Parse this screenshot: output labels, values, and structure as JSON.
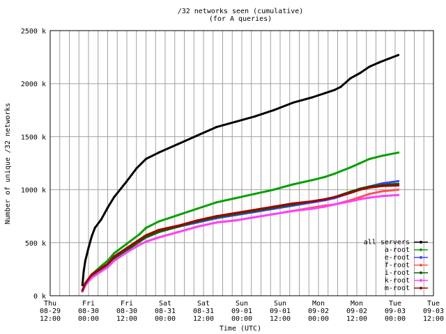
{
  "chart_data": {
    "type": "line",
    "title": "/32 networks seen (cumulative)",
    "subtitle": "(for A queries)",
    "xlabel": "Time (UTC)",
    "ylabel": "Number of unique /32 networks",
    "xlim": [
      "2002-08-29T12:00",
      "2002-09-03T12:00"
    ],
    "ylim": [
      0,
      2500000
    ],
    "grid": true,
    "legend_position": "lower-right",
    "x_ticks": [
      {
        "t": 0,
        "l1": "Thu",
        "l2": "08-29",
        "l3": "12:00"
      },
      {
        "t": 12,
        "l1": "Fri",
        "l2": "08-30",
        "l3": "00:00"
      },
      {
        "t": 24,
        "l1": "Fri",
        "l2": "08-30",
        "l3": "12:00"
      },
      {
        "t": 36,
        "l1": "Sat",
        "l2": "08-31",
        "l3": "00:00"
      },
      {
        "t": 48,
        "l1": "Sat",
        "l2": "08-31",
        "l3": "12:00"
      },
      {
        "t": 60,
        "l1": "Sun",
        "l2": "09-01",
        "l3": "00:00"
      },
      {
        "t": 72,
        "l1": "Sun",
        "l2": "09-01",
        "l3": "12:00"
      },
      {
        "t": 84,
        "l1": "Mon",
        "l2": "09-02",
        "l3": "00:00"
      },
      {
        "t": 96,
        "l1": "Mon",
        "l2": "09-02",
        "l3": "12:00"
      },
      {
        "t": 108,
        "l1": "Tue",
        "l2": "09-03",
        "l3": "00:00"
      },
      {
        "t": 120,
        "l1": "Tue",
        "l2": "09-03",
        "l3": "12:00"
      }
    ],
    "y_ticks": [
      {
        "v": 0,
        "label": "0 k"
      },
      {
        "v": 500000,
        "label": "500 k"
      },
      {
        "v": 1000000,
        "label": "1000 k"
      },
      {
        "v": 1500000,
        "label": "1500 k"
      },
      {
        "v": 2000000,
        "label": "2000 k"
      },
      {
        "v": 2500000,
        "label": "2500 k"
      }
    ],
    "series": [
      {
        "name": "all servers",
        "color": "#000000",
        "points": [
          [
            10.1,
            100000
          ],
          [
            10.5,
            230000
          ],
          [
            11,
            330000
          ],
          [
            12,
            450000
          ],
          [
            13,
            560000
          ],
          [
            14,
            640000
          ],
          [
            16,
            720000
          ],
          [
            18,
            830000
          ],
          [
            20,
            930000
          ],
          [
            24,
            1080000
          ],
          [
            27,
            1200000
          ],
          [
            30,
            1290000
          ],
          [
            34,
            1350000
          ],
          [
            40,
            1430000
          ],
          [
            46,
            1510000
          ],
          [
            52,
            1590000
          ],
          [
            58,
            1640000
          ],
          [
            64,
            1690000
          ],
          [
            70,
            1750000
          ],
          [
            76,
            1820000
          ],
          [
            82,
            1870000
          ],
          [
            86,
            1910000
          ],
          [
            89,
            1940000
          ],
          [
            91,
            1970000
          ],
          [
            94,
            2050000
          ],
          [
            97,
            2100000
          ],
          [
            100,
            2160000
          ],
          [
            103,
            2200000
          ],
          [
            106,
            2235000
          ],
          [
            109,
            2270000
          ]
        ]
      },
      {
        "name": "a-root",
        "color": "#00a000",
        "points": [
          [
            10.1,
            50000
          ],
          [
            11,
            120000
          ],
          [
            13,
            200000
          ],
          [
            16,
            280000
          ],
          [
            18,
            330000
          ],
          [
            20,
            400000
          ],
          [
            24,
            490000
          ],
          [
            28,
            580000
          ],
          [
            30,
            640000
          ],
          [
            34,
            700000
          ],
          [
            40,
            760000
          ],
          [
            46,
            820000
          ],
          [
            52,
            880000
          ],
          [
            58,
            920000
          ],
          [
            64,
            960000
          ],
          [
            70,
            1000000
          ],
          [
            76,
            1050000
          ],
          [
            82,
            1090000
          ],
          [
            86,
            1120000
          ],
          [
            89,
            1150000
          ],
          [
            94,
            1210000
          ],
          [
            97,
            1250000
          ],
          [
            100,
            1290000
          ],
          [
            104,
            1320000
          ],
          [
            109,
            1350000
          ]
        ]
      },
      {
        "name": "e-root",
        "color": "#4040ff",
        "points": [
          [
            10.1,
            50000
          ],
          [
            11,
            110000
          ],
          [
            13,
            190000
          ],
          [
            16,
            260000
          ],
          [
            18,
            300000
          ],
          [
            20,
            360000
          ],
          [
            24,
            440000
          ],
          [
            28,
            520000
          ],
          [
            30,
            560000
          ],
          [
            34,
            610000
          ],
          [
            40,
            650000
          ],
          [
            46,
            690000
          ],
          [
            52,
            730000
          ],
          [
            58,
            760000
          ],
          [
            64,
            790000
          ],
          [
            70,
            820000
          ],
          [
            76,
            850000
          ],
          [
            82,
            880000
          ],
          [
            86,
            900000
          ],
          [
            89,
            920000
          ],
          [
            94,
            970000
          ],
          [
            97,
            1000000
          ],
          [
            100,
            1030000
          ],
          [
            104,
            1060000
          ],
          [
            109,
            1080000
          ]
        ]
      },
      {
        "name": "f-root",
        "color": "#ff5050",
        "points": [
          [
            10.1,
            40000
          ],
          [
            11,
            100000
          ],
          [
            13,
            170000
          ],
          [
            16,
            230000
          ],
          [
            18,
            270000
          ],
          [
            20,
            330000
          ],
          [
            24,
            410000
          ],
          [
            28,
            480000
          ],
          [
            30,
            510000
          ],
          [
            34,
            550000
          ],
          [
            40,
            600000
          ],
          [
            46,
            650000
          ],
          [
            52,
            690000
          ],
          [
            58,
            710000
          ],
          [
            64,
            740000
          ],
          [
            70,
            770000
          ],
          [
            76,
            800000
          ],
          [
            82,
            830000
          ],
          [
            86,
            850000
          ],
          [
            89,
            860000
          ],
          [
            94,
            900000
          ],
          [
            97,
            930000
          ],
          [
            100,
            960000
          ],
          [
            104,
            985000
          ],
          [
            109,
            1000000
          ]
        ]
      },
      {
        "name": "i-root",
        "color": "#006400",
        "points": [
          [
            10.1,
            45000
          ],
          [
            11,
            110000
          ],
          [
            13,
            190000
          ],
          [
            16,
            250000
          ],
          [
            18,
            290000
          ],
          [
            20,
            350000
          ],
          [
            24,
            430000
          ],
          [
            28,
            510000
          ],
          [
            30,
            550000
          ],
          [
            34,
            600000
          ],
          [
            40,
            650000
          ],
          [
            46,
            700000
          ],
          [
            52,
            740000
          ],
          [
            58,
            770000
          ],
          [
            64,
            800000
          ],
          [
            70,
            830000
          ],
          [
            76,
            860000
          ],
          [
            82,
            890000
          ],
          [
            86,
            910000
          ],
          [
            89,
            930000
          ],
          [
            94,
            980000
          ],
          [
            97,
            1010000
          ],
          [
            100,
            1030000
          ],
          [
            104,
            1045000
          ],
          [
            109,
            1055000
          ]
        ]
      },
      {
        "name": "k-root",
        "color": "#ff40ff",
        "points": [
          [
            10.1,
            40000
          ],
          [
            11,
            100000
          ],
          [
            13,
            170000
          ],
          [
            16,
            230000
          ],
          [
            18,
            270000
          ],
          [
            20,
            330000
          ],
          [
            24,
            410000
          ],
          [
            28,
            480000
          ],
          [
            30,
            510000
          ],
          [
            34,
            550000
          ],
          [
            40,
            600000
          ],
          [
            46,
            650000
          ],
          [
            52,
            690000
          ],
          [
            58,
            710000
          ],
          [
            64,
            740000
          ],
          [
            70,
            770000
          ],
          [
            76,
            800000
          ],
          [
            82,
            820000
          ],
          [
            86,
            840000
          ],
          [
            89,
            860000
          ],
          [
            94,
            890000
          ],
          [
            97,
            910000
          ],
          [
            100,
            925000
          ],
          [
            104,
            940000
          ],
          [
            109,
            950000
          ]
        ]
      },
      {
        "name": "m-root",
        "color": "#a00000",
        "points": [
          [
            10.1,
            50000
          ],
          [
            11,
            115000
          ],
          [
            13,
            200000
          ],
          [
            16,
            260000
          ],
          [
            18,
            300000
          ],
          [
            20,
            370000
          ],
          [
            24,
            450000
          ],
          [
            28,
            530000
          ],
          [
            30,
            570000
          ],
          [
            34,
            620000
          ],
          [
            40,
            660000
          ],
          [
            46,
            710000
          ],
          [
            52,
            750000
          ],
          [
            58,
            780000
          ],
          [
            64,
            810000
          ],
          [
            70,
            840000
          ],
          [
            76,
            870000
          ],
          [
            82,
            890000
          ],
          [
            86,
            910000
          ],
          [
            89,
            930000
          ],
          [
            94,
            970000
          ],
          [
            97,
            1000000
          ],
          [
            100,
            1020000
          ],
          [
            104,
            1035000
          ],
          [
            109,
            1040000
          ]
        ]
      }
    ]
  }
}
